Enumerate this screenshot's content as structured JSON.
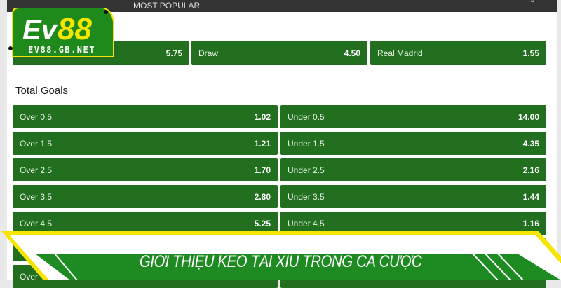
{
  "header": {
    "title": "MOST POPULAR",
    "count": "3"
  },
  "match_result": [
    {
      "label": "",
      "odds": "5.75"
    },
    {
      "label": "Draw",
      "odds": "4.50"
    },
    {
      "label": "Real Madrid",
      "odds": "1.55"
    }
  ],
  "total_goals": {
    "title": "Total Goals",
    "rows": [
      {
        "over": "Over 0.5",
        "over_odds": "1.02",
        "under": "Under 0.5",
        "under_odds": "14.00"
      },
      {
        "over": "Over 1.5",
        "over_odds": "1.21",
        "under": "Under 1.5",
        "under_odds": "4.35"
      },
      {
        "over": "Over 2.5",
        "over_odds": "1.70",
        "under": "Under 2.5",
        "under_odds": "2.16"
      },
      {
        "over": "Over 3.5",
        "over_odds": "2.80",
        "under": "Under 3.5",
        "under_odds": "1.44"
      },
      {
        "over": "Over 4.5",
        "over_odds": "5.25",
        "under": "Under 4.5",
        "under_odds": "1.16"
      },
      {
        "over": "",
        "over_odds": "",
        "under": "",
        "under_odds": ""
      },
      {
        "over": "Over",
        "over_odds": "",
        "under": "",
        "under_odds": ""
      }
    ]
  },
  "logo": {
    "text_ev": "Ev",
    "text_88": "88",
    "domain": "EV88.GB.NET"
  },
  "banner": {
    "title": "GIỚI THIỆU KÈO TÀI XỈU TRONG CÁ CƯỢC"
  },
  "colors": {
    "green": "#22701f",
    "yellow": "#f5e500",
    "dark": "#333333"
  }
}
